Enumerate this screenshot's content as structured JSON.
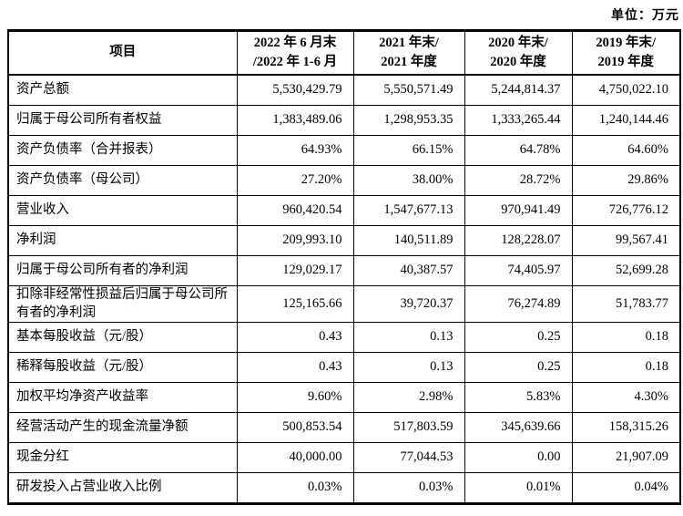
{
  "page": {
    "unit_label": "单位：万元"
  },
  "colors": {
    "background": "#ffffff",
    "border": "#000000",
    "text": "#000000"
  },
  "table": {
    "headers": [
      {
        "lines": [
          "项目"
        ]
      },
      {
        "lines": [
          "2022 年 6 月末",
          "/2022 年 1-6 月"
        ]
      },
      {
        "lines": [
          "2021 年末/",
          "2021 年度"
        ]
      },
      {
        "lines": [
          "2020 年末/",
          "2020 年度"
        ]
      },
      {
        "lines": [
          "2019 年末/",
          "2019 年度"
        ]
      }
    ],
    "rows": [
      {
        "label": "资产总额",
        "values": [
          "5,530,429.79",
          "5,550,571.49",
          "5,244,814.37",
          "4,750,022.10"
        ]
      },
      {
        "label": "归属于母公司所有者权益",
        "values": [
          "1,383,489.06",
          "1,298,953.35",
          "1,333,265.44",
          "1,240,144.46"
        ]
      },
      {
        "label": "资产负债率（合并报表）",
        "values": [
          "64.93%",
          "66.15%",
          "64.78%",
          "64.60%"
        ]
      },
      {
        "label": "资产负债率（母公司）",
        "values": [
          "27.20%",
          "38.00%",
          "28.72%",
          "29.86%"
        ]
      },
      {
        "label": "营业收入",
        "values": [
          "960,420.54",
          "1,547,677.13",
          "970,941.49",
          "726,776.12"
        ]
      },
      {
        "label": "净利润",
        "values": [
          "209,993.10",
          "140,511.89",
          "128,228.07",
          "99,567.41"
        ]
      },
      {
        "label": "归属于母公司所有者的净利润",
        "values": [
          "129,029.17",
          "40,387.57",
          "74,405.97",
          "52,699.28"
        ]
      },
      {
        "label": "扣除非经常性损益后归属于母公司所有者的净利润",
        "values": [
          "125,165.66",
          "39,720.37",
          "76,274.89",
          "51,783.77"
        ]
      },
      {
        "label": "基本每股收益（元/股）",
        "values": [
          "0.43",
          "0.13",
          "0.25",
          "0.18"
        ]
      },
      {
        "label": "稀释每股收益（元/股）",
        "values": [
          "0.43",
          "0.13",
          "0.25",
          "0.18"
        ]
      },
      {
        "label": "加权平均净资产收益率",
        "values": [
          "9.60%",
          "2.98%",
          "5.83%",
          "4.30%"
        ]
      },
      {
        "label": "经营活动产生的现金流量净额",
        "values": [
          "500,853.54",
          "517,803.59",
          "345,639.66",
          "158,315.26"
        ]
      },
      {
        "label": "现金分红",
        "values": [
          "40,000.00",
          "77,044.53",
          "0.00",
          "21,907.09"
        ]
      },
      {
        "label": "研发投入占营业收入比例",
        "values": [
          "0.03%",
          "0.03%",
          "0.01%",
          "0.04%"
        ]
      }
    ]
  }
}
